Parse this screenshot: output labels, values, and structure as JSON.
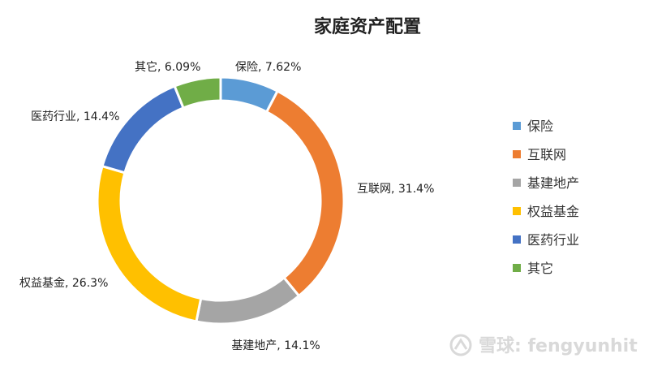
{
  "chart_data": {
    "type": "pie",
    "variant": "donut",
    "title": "家庭资产配置",
    "categories": [
      "保险",
      "互联网",
      "基建地产",
      "权益基金",
      "医药行业",
      "其它"
    ],
    "values": [
      7.62,
      31.4,
      14.1,
      26.3,
      14.4,
      6.09
    ],
    "data_labels": [
      "保险, 7.62%",
      "互联网, 31.4%",
      "基建地产, 14.1%",
      "权益基金, 26.3%",
      "医药行业, 14.4%",
      "其它, 6.09%"
    ],
    "colors": [
      "#5b9bd5",
      "#ed7d31",
      "#a5a5a5",
      "#ffc000",
      "#4472c4",
      "#70ad47"
    ],
    "legend": "right"
  },
  "watermark": {
    "icon": "snowball-logo-icon",
    "text": "雪球: fengyunhit"
  }
}
